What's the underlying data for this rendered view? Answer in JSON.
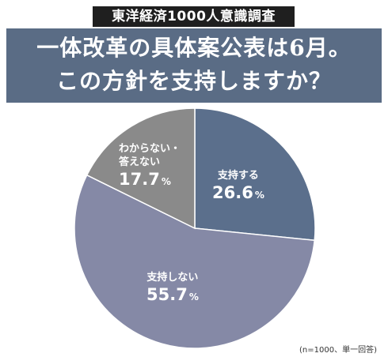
{
  "badge": "東洋経済1000人意識調査",
  "headline": {
    "line1": "一体改革の具体案公表は6月。",
    "line2": "この方針を支持しますか？"
  },
  "chart_data": {
    "type": "pie",
    "slices": [
      {
        "label": "支持する",
        "value": 26.6,
        "color": "#5b6f8c"
      },
      {
        "label": "支持しない",
        "value": 55.7,
        "color": "#8589a6"
      },
      {
        "label": "わからない・\n答えない",
        "value": 17.7,
        "color": "#8a8a8a"
      }
    ],
    "unit": "%",
    "start": "12 o'clock, clockwise"
  },
  "footnote": "(n=1000、単一回答)",
  "colors": {
    "header_band": "#5a6c85",
    "badge": "#1f1f1f",
    "slice_border": "#ffffff"
  }
}
